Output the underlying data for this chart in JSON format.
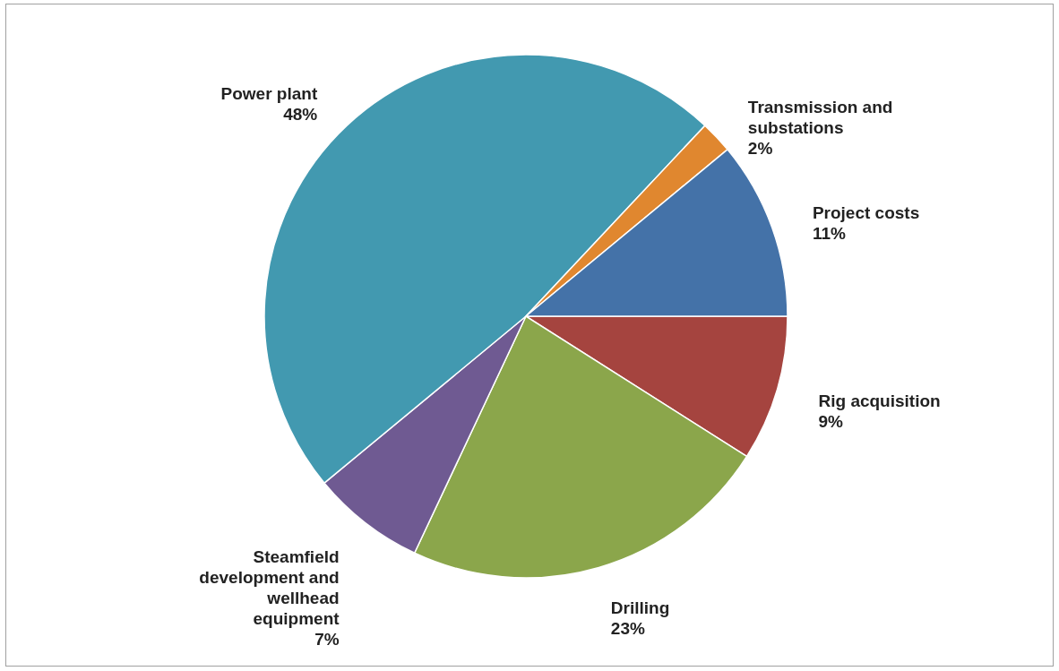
{
  "chart_data": {
    "type": "pie",
    "categories": [
      "Rig acquisition",
      "Drilling",
      "Steamfield development and wellhead equipment",
      "Power plant",
      "Transmission and substations",
      "Project costs"
    ],
    "values": [
      9,
      23,
      7,
      48,
      2,
      11
    ],
    "value_labels": [
      "9%",
      "23%",
      "7%",
      "48%",
      "2%",
      "11%"
    ],
    "colors": [
      "#a5443f",
      "#8ba64b",
      "#6f5a92",
      "#4299b0",
      "#e0872f",
      "#4472a8"
    ]
  }
}
